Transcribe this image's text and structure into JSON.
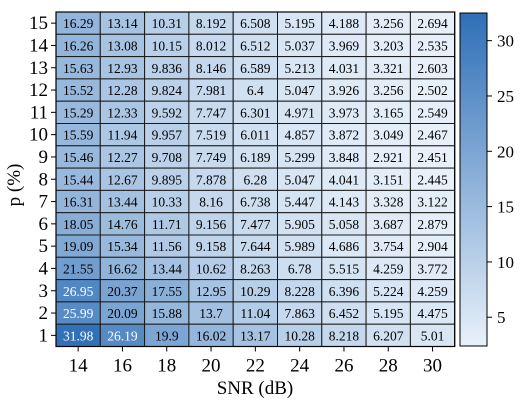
{
  "chart_data": {
    "type": "heatmap",
    "title": "",
    "xlabel": "SNR (dB)",
    "ylabel": "p (%)",
    "x_categories": [
      "14",
      "16",
      "18",
      "20",
      "22",
      "24",
      "26",
      "28",
      "30"
    ],
    "y_categories": [
      "15",
      "14",
      "13",
      "12",
      "11",
      "10",
      "9",
      "8",
      "7",
      "6",
      "5",
      "4",
      "3",
      "2",
      "1"
    ],
    "values": [
      [
        "16.29",
        "13.14",
        "10.31",
        "8.192",
        "6.508",
        "5.195",
        "4.188",
        "3.256",
        "2.694"
      ],
      [
        "16.26",
        "13.08",
        "10.15",
        "8.012",
        "6.512",
        "5.037",
        "3.969",
        "3.203",
        "2.535"
      ],
      [
        "15.63",
        "12.93",
        "9.836",
        "8.146",
        "6.589",
        "5.213",
        "4.031",
        "3.321",
        "2.603"
      ],
      [
        "15.52",
        "12.28",
        "9.824",
        "7.981",
        "6.4",
        "5.047",
        "3.926",
        "3.256",
        "2.502"
      ],
      [
        "15.29",
        "12.33",
        "9.592",
        "7.747",
        "6.301",
        "4.971",
        "3.973",
        "3.165",
        "2.549"
      ],
      [
        "15.59",
        "11.94",
        "9.957",
        "7.519",
        "6.011",
        "4.857",
        "3.872",
        "3.049",
        "2.467"
      ],
      [
        "15.46",
        "12.27",
        "9.708",
        "7.749",
        "6.189",
        "5.299",
        "3.848",
        "2.921",
        "2.451"
      ],
      [
        "15.44",
        "12.67",
        "9.895",
        "7.878",
        "6.28",
        "5.047",
        "4.041",
        "3.151",
        "2.445"
      ],
      [
        "16.31",
        "13.44",
        "10.33",
        "8.16",
        "6.738",
        "5.447",
        "4.143",
        "3.328",
        "3.122"
      ],
      [
        "18.05",
        "14.76",
        "11.71",
        "9.156",
        "7.477",
        "5.905",
        "5.058",
        "3.687",
        "2.879"
      ],
      [
        "19.09",
        "15.34",
        "11.56",
        "9.158",
        "7.644",
        "5.989",
        "4.686",
        "3.754",
        "2.904"
      ],
      [
        "21.55",
        "16.62",
        "13.44",
        "10.62",
        "8.263",
        "6.78",
        "5.515",
        "4.259",
        "3.772"
      ],
      [
        "26.95",
        "20.37",
        "17.55",
        "12.95",
        "10.29",
        "8.228",
        "6.396",
        "5.224",
        "4.259"
      ],
      [
        "25.99",
        "20.09",
        "15.88",
        "13.7",
        "11.04",
        "7.863",
        "6.452",
        "5.195",
        "4.475"
      ],
      [
        "31.98",
        "26.19",
        "19.9",
        "16.02",
        "13.17",
        "10.28",
        "8.218",
        "6.207",
        "5.01"
      ]
    ],
    "colorbar": {
      "min": 2.4,
      "max": 32.5,
      "ticks": [
        "5",
        "10",
        "15",
        "20",
        "25",
        "30"
      ],
      "low_color": "#e8f1fa",
      "high_color": "#2f6fb7"
    },
    "light_text_above": 25,
    "grid": true,
    "legend": "colorbar-right"
  }
}
